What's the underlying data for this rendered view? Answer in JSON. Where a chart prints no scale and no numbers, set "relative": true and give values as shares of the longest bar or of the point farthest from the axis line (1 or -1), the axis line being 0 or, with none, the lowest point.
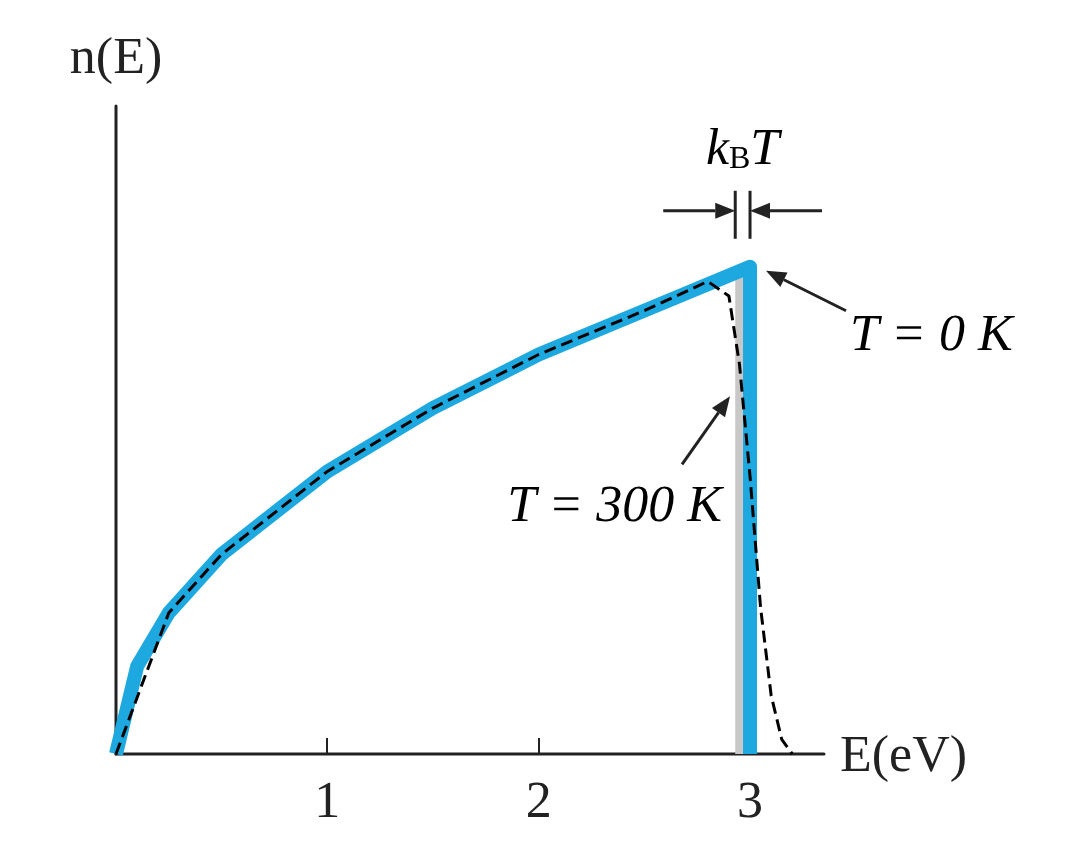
{
  "chart_data": {
    "type": "line",
    "relative": true,
    "xlabel": "E(eV)",
    "ylabel": "n(E)",
    "xlim": [
      0,
      3.35
    ],
    "xticks": [
      1,
      2,
      3
    ],
    "tick_labels": "x",
    "marker": "none",
    "grid": false,
    "legend": false,
    "series": [
      {
        "name": "T = 0 K",
        "color": "#1ea8e0",
        "line_style": "solid",
        "x": [
          0,
          0.1,
          0.25,
          0.5,
          1,
          1.5,
          2,
          2.5,
          3,
          3
        ],
        "values": [
          0,
          0.18,
          0.29,
          0.41,
          0.58,
          0.71,
          0.82,
          0.91,
          1,
          0
        ]
      },
      {
        "name": "T = 300 K",
        "color": "#000000",
        "line_style": "dashed",
        "x": [
          0,
          0.25,
          0.5,
          1,
          1.5,
          2,
          2.5,
          2.8,
          2.9,
          2.95,
          3,
          3.05,
          3.1,
          3.15,
          3.2
        ],
        "values": [
          0,
          0.29,
          0.41,
          0.58,
          0.71,
          0.82,
          0.91,
          0.97,
          0.94,
          0.8,
          0.57,
          0.3,
          0.12,
          0.03,
          0
        ]
      }
    ],
    "bands": [
      {
        "axis": "x",
        "from": 2.93,
        "to": 3.0,
        "label": "k$_{B}$T",
        "color": "#c8c8c8"
      }
    ]
  }
}
